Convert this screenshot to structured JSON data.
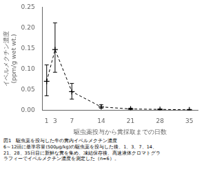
{
  "chart_data": {
    "type": "line",
    "x": [
      1,
      3,
      7,
      14,
      21,
      28,
      35
    ],
    "values": [
      0.07,
      0.147,
      0.045,
      0.008,
      0.003,
      0.002,
      0.001
    ],
    "yerr_upper": [
      0.04,
      0.065,
      0.02,
      0.005,
      0.002,
      0.001,
      0.001
    ],
    "yerr_lower": [
      0.035,
      0.055,
      0.018,
      0.003,
      0.001,
      0.001,
      0.001
    ],
    "xlabel": "駆虫薬投与から糞採取までの日数",
    "ylabel": [
      "イベルメクチン濃度",
      "(ppm/g wet wt.)"
    ],
    "xlim": [
      0,
      37
    ],
    "xticks": [
      1,
      3,
      7,
      14,
      21,
      28,
      35
    ],
    "ylim": [
      0,
      0.25
    ],
    "yticks": [
      {
        "value": 0,
        "label": "0.00"
      },
      {
        "value": 0.05,
        "label": "0.05"
      },
      {
        "value": 0.1,
        "label": "0.10"
      },
      {
        "value": 0.15,
        "label": "0.15"
      },
      {
        "value": 0.2,
        "label": "0.20"
      },
      {
        "value": 0.25,
        "label": "0.25"
      }
    ],
    "color": "#000000",
    "marker": "plus",
    "line_style": "dashed",
    "grid": false,
    "annotations": [
      "図1　駆虫薬を投与した牛の糞内イベルメクチン濃度",
      "6～12頭に基準容量(500μg/kg)の駆虫薬を投与した後、1、3、7、14、",
      "21、28、35日目に新鮮な糞を集め、凍結保存後、高速液体クロマトグラ",
      "ラフィーでイベルメクチン濃度を測定した（n=6）。"
    ]
  }
}
